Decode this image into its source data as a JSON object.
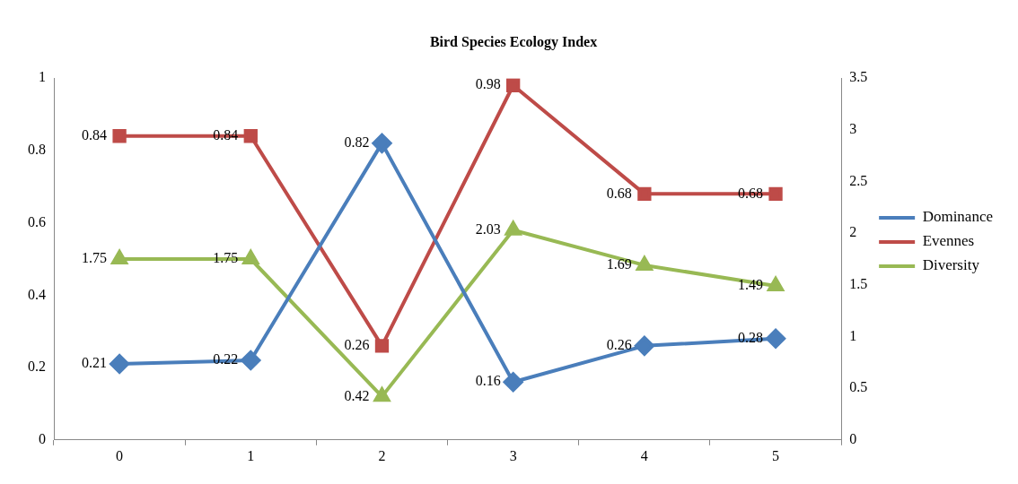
{
  "chart_data": {
    "type": "line",
    "title": "Bird Species Ecology Index",
    "categories": [
      "0",
      "1",
      "2",
      "3",
      "4",
      "5"
    ],
    "series": [
      {
        "name": "Dominance",
        "color": "#4a7ebb",
        "marker": "diamond",
        "values": [
          0.21,
          0.22,
          0.82,
          0.16,
          0.26,
          0.28
        ]
      },
      {
        "name": "Evennes",
        "color": "#be4b48",
        "marker": "square",
        "values": [
          0.84,
          0.84,
          0.26,
          0.98,
          0.68,
          0.68
        ]
      },
      {
        "name": "Diversity",
        "color": "#98b954",
        "marker": "triangle",
        "axis": "y2",
        "values": [
          1.75,
          1.75,
          0.42,
          2.03,
          1.69,
          1.49
        ]
      }
    ],
    "ylim": [
      0,
      1
    ],
    "yticks": [
      0,
      0.2,
      0.4,
      0.6,
      0.8,
      1
    ],
    "y2lim": [
      0,
      3.5
    ],
    "y2ticks": [
      0,
      0.5,
      1,
      1.5,
      2,
      2.5,
      3,
      3.5
    ],
    "data_labels": true,
    "legend": "right",
    "grid": false
  }
}
